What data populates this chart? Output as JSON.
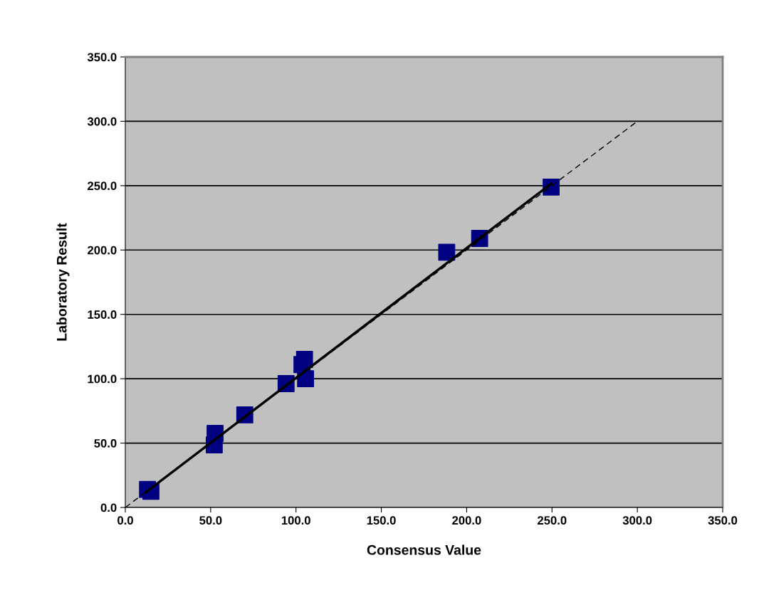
{
  "chart_data": {
    "type": "scatter",
    "xlabel": "Consensus Value",
    "ylabel": "Laboratory Result",
    "xlim": [
      0,
      350
    ],
    "ylim": [
      0,
      350
    ],
    "xticks": [
      {
        "value": 0,
        "label": "0.0"
      },
      {
        "value": 50,
        "label": "50.0"
      },
      {
        "value": 100,
        "label": "100.0"
      },
      {
        "value": 150,
        "label": "150.0"
      },
      {
        "value": 200,
        "label": "200.0"
      },
      {
        "value": 250,
        "label": "250.0"
      },
      {
        "value": 300,
        "label": "300.0"
      },
      {
        "value": 350,
        "label": "350.0"
      }
    ],
    "yticks": [
      {
        "value": 0,
        "label": "0.0"
      },
      {
        "value": 50,
        "label": "50.0"
      },
      {
        "value": 100,
        "label": "100.0"
      },
      {
        "value": 150,
        "label": "150.0"
      },
      {
        "value": 200,
        "label": "200.0"
      },
      {
        "value": 250,
        "label": "250.0"
      },
      {
        "value": 300,
        "label": "300.0"
      },
      {
        "value": 350,
        "label": "350.0"
      }
    ],
    "grid": "y",
    "legend": false,
    "series": [
      {
        "marker": "square",
        "color": "#000080",
        "x": [
          13,
          15,
          52.6,
          52.1,
          70,
          94.2,
          105,
          103.5,
          105.6,
          188.3,
          207.6,
          249.5
        ],
        "values": [
          14,
          12.5,
          57.5,
          48.6,
          71.9,
          96.2,
          115,
          111,
          100,
          198.3,
          209,
          248.9
        ]
      },
      {
        "type": "line",
        "marker": "none",
        "line_style": "solid",
        "color": "#000000",
        "x": [
          12,
          249.5
        ],
        "values": [
          11.8,
          251.5
        ]
      },
      {
        "type": "line",
        "marker": "none",
        "line_style": "dashed",
        "color": "#000000",
        "x": [
          0,
          300
        ],
        "values": [
          0,
          300
        ]
      }
    ]
  }
}
